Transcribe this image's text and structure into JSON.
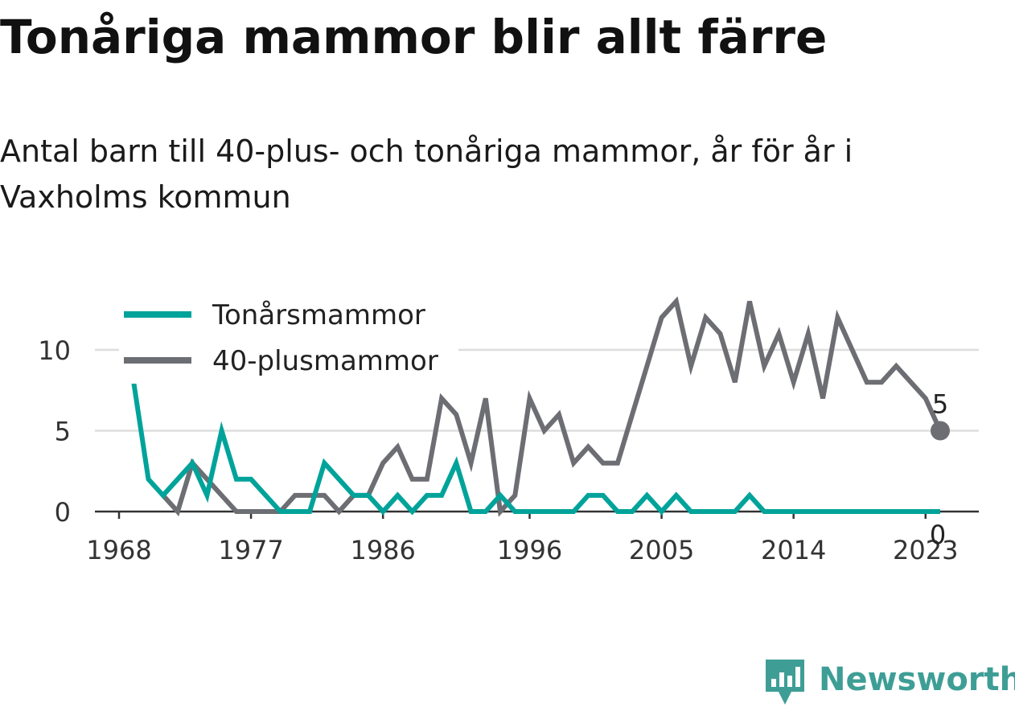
{
  "title": "Tonåriga mammor blir allt färre",
  "subtitle": "Antal barn till 40-plus- och tonåriga mammor, år för år i Vaxholms kommun",
  "brand": "Newsworthy",
  "chart_data": {
    "type": "line",
    "x": [
      1969,
      1970,
      1971,
      1972,
      1973,
      1974,
      1975,
      1976,
      1977,
      1978,
      1979,
      1980,
      1981,
      1982,
      1983,
      1984,
      1985,
      1986,
      1987,
      1988,
      1989,
      1990,
      1991,
      1992,
      1993,
      1994,
      1995,
      1996,
      1997,
      1998,
      1999,
      2000,
      2001,
      2002,
      2003,
      2004,
      2005,
      2006,
      2007,
      2008,
      2009,
      2010,
      2011,
      2012,
      2013,
      2014,
      2015,
      2016,
      2017,
      2018,
      2019,
      2020,
      2021,
      2022,
      2023,
      2024
    ],
    "series": [
      {
        "name": "Tonårsmammor",
        "color": "#00a39a",
        "values": [
          8,
          2,
          1,
          2,
          3,
          1,
          5,
          2,
          2,
          1,
          0,
          0,
          0,
          3,
          2,
          1,
          1,
          0,
          1,
          0,
          1,
          1,
          3,
          0,
          0,
          1,
          0,
          0,
          0,
          0,
          0,
          1,
          1,
          0,
          0,
          1,
          0,
          1,
          0,
          0,
          0,
          0,
          1,
          0,
          0,
          0,
          0,
          0,
          0,
          0,
          0,
          0,
          0,
          0,
          0,
          0
        ],
        "end_label": "0"
      },
      {
        "name": "40-plusmammor",
        "color": "#6d6e73",
        "values": [
          null,
          null,
          1,
          0,
          3,
          2,
          1,
          0,
          0,
          0,
          0,
          1,
          1,
          1,
          0,
          1,
          1,
          3,
          4,
          2,
          2,
          7,
          6,
          3,
          7,
          0,
          1,
          7,
          5,
          6,
          3,
          4,
          3,
          3,
          6,
          9,
          12,
          13,
          9,
          12,
          11,
          8,
          13,
          9,
          11,
          8,
          11,
          7,
          12,
          10,
          8,
          8,
          9,
          8,
          7,
          5
        ],
        "end_label": "5"
      }
    ],
    "x_ticks": [
      "1968",
      "1977",
      "1986",
      "1996",
      "2005",
      "2014",
      "2023"
    ],
    "x_tick_values": [
      1968,
      1977,
      1986,
      1996,
      2005,
      2014,
      2023
    ],
    "y_ticks": [
      "0",
      "5",
      "10"
    ],
    "y_tick_values": [
      0,
      5,
      10
    ],
    "xlim": [
      1968,
      2025
    ],
    "ylim": [
      0,
      13
    ],
    "grid": true,
    "legend_position": "top-left",
    "gridline_color": "#dddddd",
    "axis_color": "#333333"
  }
}
